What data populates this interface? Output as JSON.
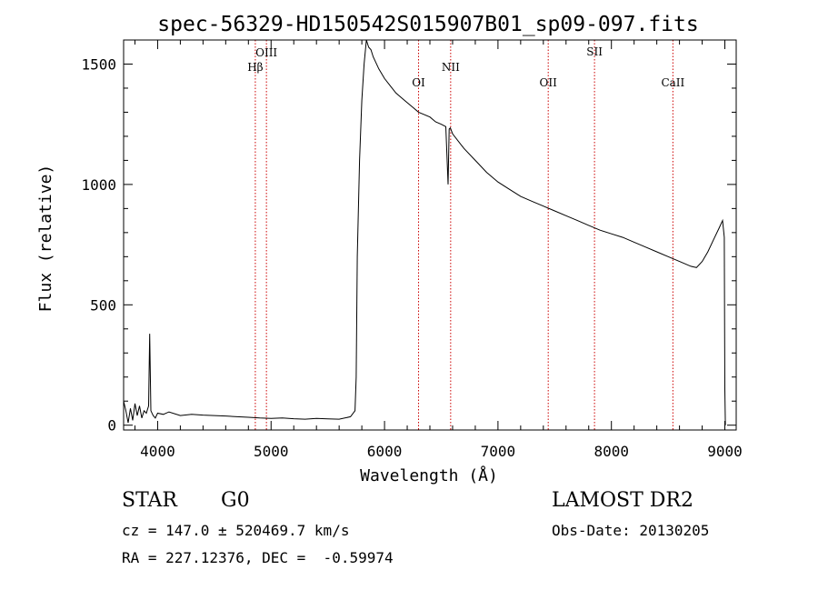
{
  "chart_data": {
    "type": "line",
    "title": "spec-56329-HD150542S015907B01_sp09-097.fits",
    "xlabel": "Wavelength (Å)",
    "ylabel": "Flux (relative)",
    "xlim": [
      3700,
      9100
    ],
    "ylim": [
      -20,
      1600
    ],
    "xticks": [
      4000,
      5000,
      6000,
      7000,
      8000,
      9000
    ],
    "yticks": [
      0,
      500,
      1000,
      1500
    ],
    "grid": false,
    "series": [
      {
        "x": [
          3700,
          3720,
          3740,
          3760,
          3780,
          3800,
          3820,
          3840,
          3860,
          3880,
          3900,
          3920,
          3930,
          3940,
          3960,
          3980,
          4000,
          4050,
          4100,
          4200,
          4300,
          4400,
          4500,
          4600,
          4700,
          4800,
          4900,
          5000,
          5100,
          5200,
          5300,
          5400,
          5500,
          5600,
          5650,
          5700,
          5740,
          5750,
          5760,
          5780,
          5800,
          5820,
          5840,
          5860,
          5880,
          5900,
          5950,
          6000,
          6050,
          6100,
          6150,
          6200,
          6250,
          6300,
          6350,
          6400,
          6450,
          6500,
          6540,
          6560,
          6570,
          6580,
          6600,
          6700,
          6800,
          6900,
          7000,
          7100,
          7200,
          7300,
          7400,
          7500,
          7600,
          7700,
          7800,
          7900,
          8000,
          8100,
          8200,
          8300,
          8400,
          8500,
          8600,
          8700,
          8750,
          8800,
          8850,
          8900,
          8950,
          8980,
          8995,
          9000,
          9005
        ],
        "y": [
          100,
          60,
          10,
          70,
          20,
          90,
          40,
          80,
          30,
          60,
          50,
          80,
          380,
          60,
          40,
          30,
          50,
          45,
          55,
          40,
          45,
          42,
          40,
          38,
          35,
          33,
          30,
          28,
          30,
          27,
          25,
          28,
          26,
          25,
          30,
          35,
          60,
          200,
          700,
          1100,
          1350,
          1500,
          1600,
          1570,
          1560,
          1530,
          1480,
          1440,
          1410,
          1380,
          1360,
          1340,
          1320,
          1300,
          1290,
          1280,
          1260,
          1250,
          1240,
          1000,
          1230,
          1235,
          1210,
          1150,
          1100,
          1050,
          1010,
          980,
          950,
          930,
          910,
          890,
          870,
          850,
          830,
          810,
          795,
          780,
          760,
          740,
          720,
          700,
          680,
          660,
          655,
          680,
          720,
          770,
          820,
          850,
          780,
          150,
          0
        ]
      }
    ],
    "lines": [
      {
        "label": "Hβ",
        "x": 4861
      },
      {
        "label": "OIII",
        "x": 4959
      },
      {
        "label": "OI",
        "x": 6300
      },
      {
        "label": "NII",
        "x": 6583
      },
      {
        "label": "OII",
        "x": 7443
      },
      {
        "label": "SII",
        "x": 7851
      },
      {
        "label": "CaII",
        "x": 8542
      }
    ],
    "line_color": "#000000",
    "marker_color": "#cc0000"
  },
  "info": {
    "class_label": "STAR",
    "subclass_label": "G0",
    "survey": "LAMOST DR2",
    "cz_line": "cz = 147.0 ± 520469.7 km/s",
    "obs_date": "Obs-Date: 20130205",
    "radec_line": "RA = 227.12376, DEC =  -0.59974"
  }
}
